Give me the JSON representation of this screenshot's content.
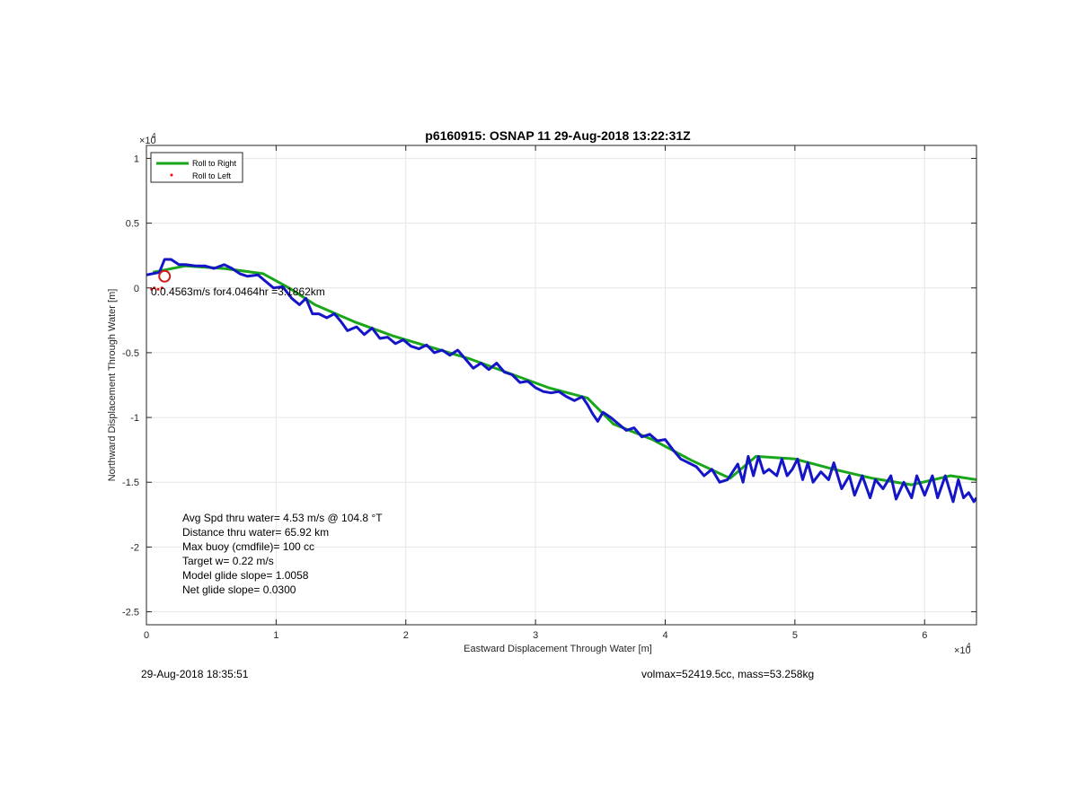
{
  "chart_data": {
    "type": "line",
    "title": "p6160915: OSNAP 11 29-Aug-2018 13:22:31Z",
    "xlabel": "Eastward Displacement Through Water [m]",
    "ylabel": "Northward Displacement Through Water [m]",
    "x_multiplier": "×10",
    "x_exponent": "4",
    "y_multiplier": "×10",
    "y_exponent": "4",
    "xlim": [
      0,
      6.4
    ],
    "ylim": [
      -2.6,
      1.1
    ],
    "xticks": [
      0,
      1,
      2,
      3,
      4,
      5,
      6
    ],
    "xtick_labels": [
      "0",
      "1",
      "2",
      "3",
      "4",
      "5",
      "6"
    ],
    "yticks": [
      1,
      0.5,
      0,
      -0.5,
      -1,
      -1.5,
      -2,
      -2.5
    ],
    "ytick_labels": [
      "1",
      "0.5",
      "0",
      "-0.5",
      "-1",
      "-1.5",
      "-2",
      "-2.5"
    ],
    "grid": true,
    "legend_position": "top-left",
    "legend": [
      "Roll to Right",
      "Roll to Left"
    ],
    "colors": {
      "roll_right": "#1aa61a",
      "roll_left": "#ff0000",
      "track": "#1515c8",
      "marker": "#cc1f1f",
      "grid": "#e6e6e6",
      "axis": "#262626"
    },
    "series": [
      {
        "name": "Roll to Right",
        "style": "line",
        "x": [
          0.05,
          0.3,
          0.6,
          0.9,
          1.1,
          1.3,
          1.6,
          1.9,
          2.2,
          2.5,
          2.8,
          3.1,
          3.4,
          3.6,
          3.9,
          4.2,
          4.5,
          4.7,
          5.0,
          5.3,
          5.6,
          5.9,
          6.2,
          6.4
        ],
        "y": [
          0.12,
          0.17,
          0.15,
          0.11,
          0.0,
          -0.13,
          -0.26,
          -0.37,
          -0.46,
          -0.55,
          -0.66,
          -0.77,
          -0.85,
          -1.05,
          -1.17,
          -1.33,
          -1.47,
          -1.3,
          -1.32,
          -1.4,
          -1.47,
          -1.52,
          -1.45,
          -1.48
        ]
      },
      {
        "name": "Roll to Left",
        "style": "points",
        "x": [
          0.04,
          0.06,
          0.09,
          0.12
        ],
        "y": [
          -0.01,
          0.0,
          -0.01,
          0.0
        ]
      }
    ],
    "track": {
      "x": [
        0.0,
        0.1,
        0.14,
        0.19,
        0.25,
        0.3,
        0.38,
        0.45,
        0.52,
        0.6,
        0.66,
        0.72,
        0.78,
        0.86,
        0.92,
        0.98,
        1.05,
        1.12,
        1.18,
        1.23,
        1.28,
        1.33,
        1.39,
        1.45,
        1.5,
        1.55,
        1.62,
        1.68,
        1.74,
        1.8,
        1.86,
        1.92,
        1.98,
        2.04,
        2.1,
        2.16,
        2.22,
        2.28,
        2.34,
        2.4,
        2.46,
        2.52,
        2.58,
        2.64,
        2.7,
        2.76,
        2.82,
        2.88,
        2.94,
        3.0,
        3.06,
        3.12,
        3.18,
        3.24,
        3.3,
        3.36,
        3.4,
        3.44,
        3.48,
        3.52,
        3.58,
        3.64,
        3.7,
        3.76,
        3.82,
        3.88,
        3.94,
        4.0,
        4.06,
        4.12,
        4.18,
        4.24,
        4.3,
        4.36,
        4.42,
        4.48,
        4.52,
        4.56,
        4.6,
        4.64,
        4.68,
        4.72,
        4.76,
        4.8,
        4.86,
        4.9,
        4.94,
        4.98,
        5.02,
        5.06,
        5.1,
        5.14,
        5.2,
        5.26,
        5.3,
        5.36,
        5.42,
        5.46,
        5.52,
        5.58,
        5.62,
        5.68,
        5.74,
        5.78,
        5.84,
        5.9,
        5.94,
        6.0,
        6.06,
        6.1,
        6.16,
        6.22,
        6.26,
        6.3,
        6.34,
        6.38,
        6.4
      ],
      "y": [
        0.1,
        0.12,
        0.22,
        0.22,
        0.18,
        0.18,
        0.17,
        0.17,
        0.15,
        0.18,
        0.15,
        0.11,
        0.09,
        0.1,
        0.05,
        0.0,
        0.01,
        -0.08,
        -0.13,
        -0.08,
        -0.2,
        -0.2,
        -0.23,
        -0.2,
        -0.26,
        -0.33,
        -0.3,
        -0.36,
        -0.31,
        -0.39,
        -0.38,
        -0.43,
        -0.4,
        -0.45,
        -0.47,
        -0.44,
        -0.5,
        -0.48,
        -0.52,
        -0.48,
        -0.55,
        -0.62,
        -0.58,
        -0.63,
        -0.58,
        -0.65,
        -0.67,
        -0.73,
        -0.72,
        -0.77,
        -0.8,
        -0.81,
        -0.8,
        -0.84,
        -0.87,
        -0.84,
        -0.9,
        -0.97,
        -1.03,
        -0.96,
        -1.0,
        -1.05,
        -1.1,
        -1.08,
        -1.15,
        -1.13,
        -1.18,
        -1.17,
        -1.25,
        -1.32,
        -1.35,
        -1.38,
        -1.45,
        -1.4,
        -1.5,
        -1.48,
        -1.42,
        -1.36,
        -1.5,
        -1.3,
        -1.45,
        -1.3,
        -1.43,
        -1.4,
        -1.45,
        -1.32,
        -1.45,
        -1.4,
        -1.32,
        -1.48,
        -1.35,
        -1.5,
        -1.42,
        -1.48,
        -1.35,
        -1.55,
        -1.45,
        -1.6,
        -1.45,
        -1.62,
        -1.48,
        -1.55,
        -1.45,
        -1.63,
        -1.5,
        -1.62,
        -1.45,
        -1.6,
        -1.45,
        -1.62,
        -1.45,
        -1.65,
        -1.48,
        -1.62,
        -1.58,
        -1.65,
        -1.62
      ]
    },
    "start_marker": {
      "x": 0.14,
      "y": 0.09
    },
    "annotations": {
      "overlap_text": "0.0.4563m/s for4.0464hr =3.1862km",
      "stats": [
        "Avg Spd thru water=  4.53 m/s @ 104.8 °T",
        "Distance thru water= 65.92 km",
        "Max buoy (cmdfile)= 100 cc",
        "Target w= 0.22 m/s",
        "Model glide slope= 1.0058",
        "Net glide slope= 0.0300"
      ]
    }
  },
  "footer": {
    "left": "29-Aug-2018 18:35:51",
    "right": "volmax=52419.5cc, mass=53.258kg"
  }
}
